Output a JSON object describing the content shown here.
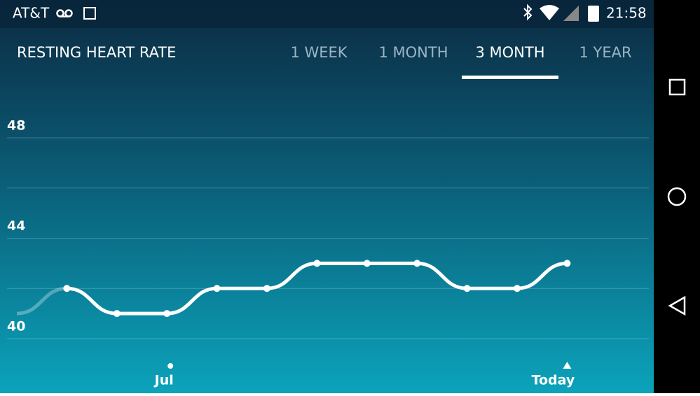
{
  "status_bar": {
    "carrier": "AT&T",
    "time": "21:58"
  },
  "tabs": [
    "1 WEEK",
    "1 MONTH",
    "3 MONTH",
    "1 YEAR"
  ],
  "selected_tab": 2,
  "chart_data": {
    "type": "line",
    "title": "RESTING HEART RATE",
    "categories": [
      null,
      null,
      null,
      "Jul",
      null,
      null,
      null,
      null,
      null,
      null,
      null,
      "Today"
    ],
    "values": [
      41,
      42,
      41,
      41,
      42,
      42,
      43,
      43,
      43,
      42,
      42,
      43
    ],
    "color": "#ffffff",
    "ylim": [
      40,
      48
    ],
    "yticks": [
      40,
      44,
      48
    ],
    "minor_yticks": [
      42,
      46
    ],
    "grid": true
  }
}
